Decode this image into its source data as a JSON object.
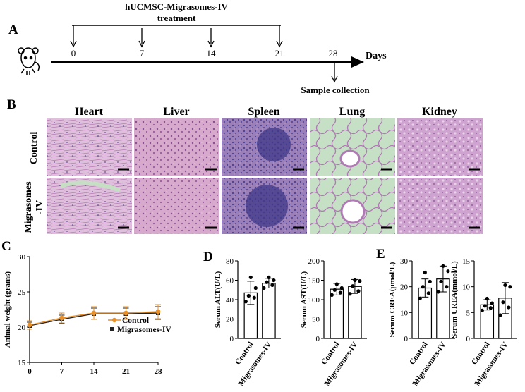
{
  "panel_a": {
    "letter": "A",
    "treatment_line1": "hUCMSC-Migrasomes-IV",
    "treatment_line2": "treatment",
    "days": [
      "0",
      "7",
      "14",
      "21",
      "28"
    ],
    "axis_label": "Days",
    "sample_label": "Sample collection",
    "mouse_icon": "mouse-icon"
  },
  "panel_b": {
    "letter": "B",
    "organs": [
      "Heart",
      "Liver",
      "Spleen",
      "Lung",
      "Kidney"
    ],
    "rows": [
      "Control",
      "Migrasomes",
      "-IV"
    ]
  },
  "panel_c": {
    "letter": "C",
    "legend": [
      "Control",
      "Migrasomes-IV"
    ]
  },
  "panel_d": {
    "letter": "D"
  },
  "panel_e": {
    "letter": "E"
  },
  "colors": {
    "control": "#e8902a",
    "migrasomes": "#222222",
    "tissue_bg": "#d9b8d6",
    "lung_bg": "#c9e3c8"
  },
  "chart_data": [
    {
      "type": "line",
      "x": [
        0,
        7,
        14,
        21,
        28
      ],
      "xticks": [
        "0",
        "7",
        "14",
        "21",
        "28"
      ],
      "xlim": [
        0,
        28
      ],
      "ylim": [
        15,
        30
      ],
      "yticks": [
        "15",
        "20",
        "25",
        "30"
      ],
      "ylabel": "Animal weight (grams)",
      "series": [
        {
          "name": "Control",
          "values": [
            20.3,
            21.3,
            22.0,
            22.0,
            22.2
          ],
          "err": [
            0.6,
            0.7,
            0.9,
            0.9,
            1.0
          ]
        },
        {
          "name": "Migrasomes-IV",
          "values": [
            20.2,
            21.1,
            21.9,
            21.9,
            22.0
          ],
          "err": [
            0.5,
            0.6,
            0.8,
            0.8,
            0.9
          ]
        }
      ]
    },
    {
      "type": "bar",
      "categories": [
        "Control",
        "Migrasomes-IV"
      ],
      "values": [
        47,
        57
      ],
      "err": [
        12,
        5
      ],
      "points": [
        [
          38,
          42,
          44,
          52,
          63
        ],
        [
          52,
          55,
          58,
          60,
          63
        ]
      ],
      "ylabel": "Serum ALT(U/L)",
      "ylim": [
        0,
        80
      ],
      "yticks": [
        "0",
        "20",
        "40",
        "60",
        "80"
      ]
    },
    {
      "type": "bar",
      "categories": [
        "Control",
        "Migrasomes-IV"
      ],
      "values": [
        127,
        134
      ],
      "err": [
        15,
        18
      ],
      "points": [
        [
          112,
          118,
          125,
          130,
          140
        ],
        [
          115,
          122,
          135,
          148,
          150
        ]
      ],
      "ylabel": "Serum AST(U/L)",
      "ylim": [
        0,
        200
      ],
      "yticks": [
        "0",
        "50",
        "100",
        "150",
        "200"
      ]
    },
    {
      "type": "bar",
      "categories": [
        "Control",
        "Migrasomes-IV"
      ],
      "values": [
        19.5,
        23
      ],
      "err": [
        3.5,
        5
      ],
      "points": [
        [
          15.5,
          17.5,
          20,
          22,
          25.5
        ],
        [
          18,
          20,
          22,
          26,
          28
        ]
      ],
      "ylabel": "Serum CREA(μmol/L)",
      "ylim": [
        0,
        30
      ],
      "yticks": [
        "0",
        "10",
        "20",
        "30"
      ]
    },
    {
      "type": "bar",
      "categories": [
        "Control",
        "Migrasomes-IV"
      ],
      "values": [
        6.5,
        7.8
      ],
      "err": [
        1.0,
        3.0
      ],
      "points": [
        [
          5.4,
          5.9,
          6.3,
          6.8,
          7.7
        ],
        [
          4.5,
          6.0,
          7.0,
          10.0,
          10.3
        ]
      ],
      "ylabel": "Serum UREA(mmol/L)",
      "ylim": [
        0,
        15
      ],
      "yticks": [
        "0",
        "5",
        "10",
        "15"
      ]
    }
  ]
}
